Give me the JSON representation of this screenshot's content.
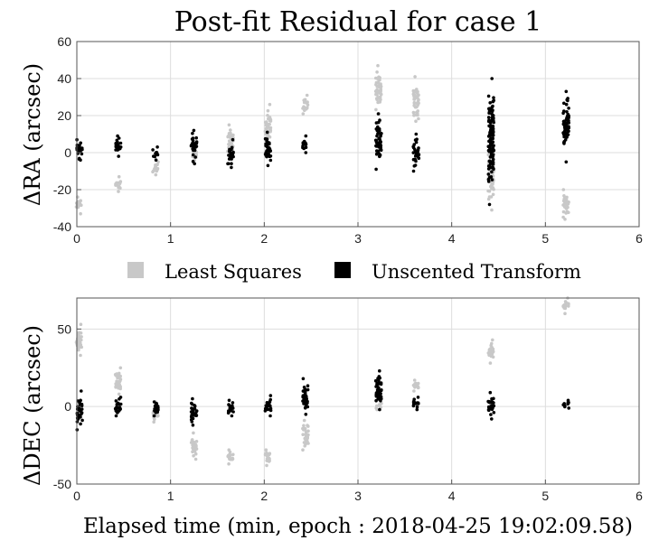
{
  "chart_data": {
    "type": "scatter",
    "title": "Post-fit Residual for case 1",
    "xlabel": "Elapsed time (min, epoch : 2018-04-25 19:02:09.58)",
    "legend": {
      "placement": "between-panels",
      "entries": [
        {
          "name": "Least Squares",
          "color": "#c8c8c8"
        },
        {
          "name": "Unscented Transform",
          "color": "#000000"
        }
      ]
    },
    "grid": true,
    "panels": [
      {
        "ylabel": "ΔRA (arcsec)",
        "xlim": [
          0,
          6
        ],
        "ylim": [
          -40,
          60
        ],
        "xticks": [
          "0",
          "1",
          "2",
          "3",
          "4",
          "5",
          "6"
        ],
        "xtick_values": [
          0,
          1,
          2,
          3,
          4,
          5,
          6
        ],
        "yticks": [
          "-40",
          "-20",
          "0",
          "20",
          "40",
          "60"
        ],
        "ytick_values": [
          -40,
          -20,
          0,
          20,
          40,
          60
        ],
        "series": [
          {
            "name": "Least Squares",
            "color": "#c8c8c8",
            "clusters": [
              {
                "x": 0.02,
                "ymin": -33,
                "ymax": -24
              },
              {
                "x": 0.44,
                "ymin": -21,
                "ymax": -13
              },
              {
                "x": 0.84,
                "ymin": -12,
                "ymax": -5
              },
              {
                "x": 1.25,
                "ymin": -5,
                "ymax": 3
              },
              {
                "x": 1.64,
                "ymin": -2,
                "ymax": 15
              },
              {
                "x": 2.04,
                "ymin": 4,
                "ymax": 26
              },
              {
                "x": 2.44,
                "ymin": 21,
                "ymax": 31
              },
              {
                "x": 3.22,
                "ymin": 17,
                "ymax": 47
              },
              {
                "x": 3.62,
                "ymin": 17,
                "ymax": 41
              },
              {
                "x": 4.42,
                "ymin": -31,
                "ymax": 2
              },
              {
                "x": 5.22,
                "ymin": -36,
                "ymax": -20
              }
            ]
          },
          {
            "name": "Unscented Transform",
            "color": "#000000",
            "clusters": [
              {
                "x": 0.03,
                "ymin": -4,
                "ymax": 7
              },
              {
                "x": 0.44,
                "ymin": -2,
                "ymax": 9
              },
              {
                "x": 0.84,
                "ymin": -4,
                "ymax": 3
              },
              {
                "x": 1.25,
                "ymin": -6,
                "ymax": 12
              },
              {
                "x": 1.64,
                "ymin": -8,
                "ymax": 7
              },
              {
                "x": 2.04,
                "ymin": -7,
                "ymax": 11
              },
              {
                "x": 2.44,
                "ymin": 0,
                "ymax": 9
              },
              {
                "x": 3.22,
                "ymin": -9,
                "ymax": 21
              },
              {
                "x": 3.62,
                "ymin": -10,
                "ymax": 10
              },
              {
                "x": 4.42,
                "ymin": -28,
                "ymax": 40
              },
              {
                "x": 5.22,
                "ymin": -5,
                "ymax": 33
              }
            ]
          }
        ]
      },
      {
        "ylabel": "ΔDEC (arcsec)",
        "xlim": [
          0,
          6
        ],
        "ylim": [
          -50,
          70
        ],
        "xticks": [
          "0",
          "1",
          "2",
          "3",
          "4",
          "5",
          "6"
        ],
        "xtick_values": [
          0,
          1,
          2,
          3,
          4,
          5,
          6
        ],
        "yticks": [
          "-50",
          "0",
          "50"
        ],
        "ytick_values": [
          -50,
          0,
          50
        ],
        "series": [
          {
            "name": "Least Squares",
            "color": "#c8c8c8",
            "clusters": [
              {
                "x": 0.02,
                "ymin": 33,
                "ymax": 53
              },
              {
                "x": 0.44,
                "ymin": 8,
                "ymax": 25
              },
              {
                "x": 0.84,
                "ymin": -10,
                "ymax": 3
              },
              {
                "x": 1.25,
                "ymin": -34,
                "ymax": -17
              },
              {
                "x": 1.64,
                "ymin": -37,
                "ymax": -28
              },
              {
                "x": 2.04,
                "ymin": -38,
                "ymax": -28
              },
              {
                "x": 2.44,
                "ymin": -28,
                "ymax": -9
              },
              {
                "x": 3.22,
                "ymin": -2,
                "ymax": 2
              },
              {
                "x": 3.62,
                "ymin": 10,
                "ymax": 17
              },
              {
                "x": 4.42,
                "ymin": 28,
                "ymax": 43
              },
              {
                "x": 5.22,
                "ymin": 60,
                "ymax": 70
              }
            ]
          },
          {
            "name": "Unscented Transform",
            "color": "#000000",
            "clusters": [
              {
                "x": 0.03,
                "ymin": -15,
                "ymax": 10
              },
              {
                "x": 0.44,
                "ymin": -6,
                "ymax": 6
              },
              {
                "x": 0.84,
                "ymin": -6,
                "ymax": 3
              },
              {
                "x": 1.25,
                "ymin": -12,
                "ymax": 5
              },
              {
                "x": 1.64,
                "ymin": -6,
                "ymax": 4
              },
              {
                "x": 2.04,
                "ymin": -6,
                "ymax": 7
              },
              {
                "x": 2.44,
                "ymin": -5,
                "ymax": 18
              },
              {
                "x": 3.22,
                "ymin": -2,
                "ymax": 23
              },
              {
                "x": 3.62,
                "ymin": -2,
                "ymax": 6
              },
              {
                "x": 4.42,
                "ymin": -8,
                "ymax": 9
              },
              {
                "x": 5.22,
                "ymin": -1,
                "ymax": 4
              }
            ]
          }
        ]
      }
    ]
  }
}
